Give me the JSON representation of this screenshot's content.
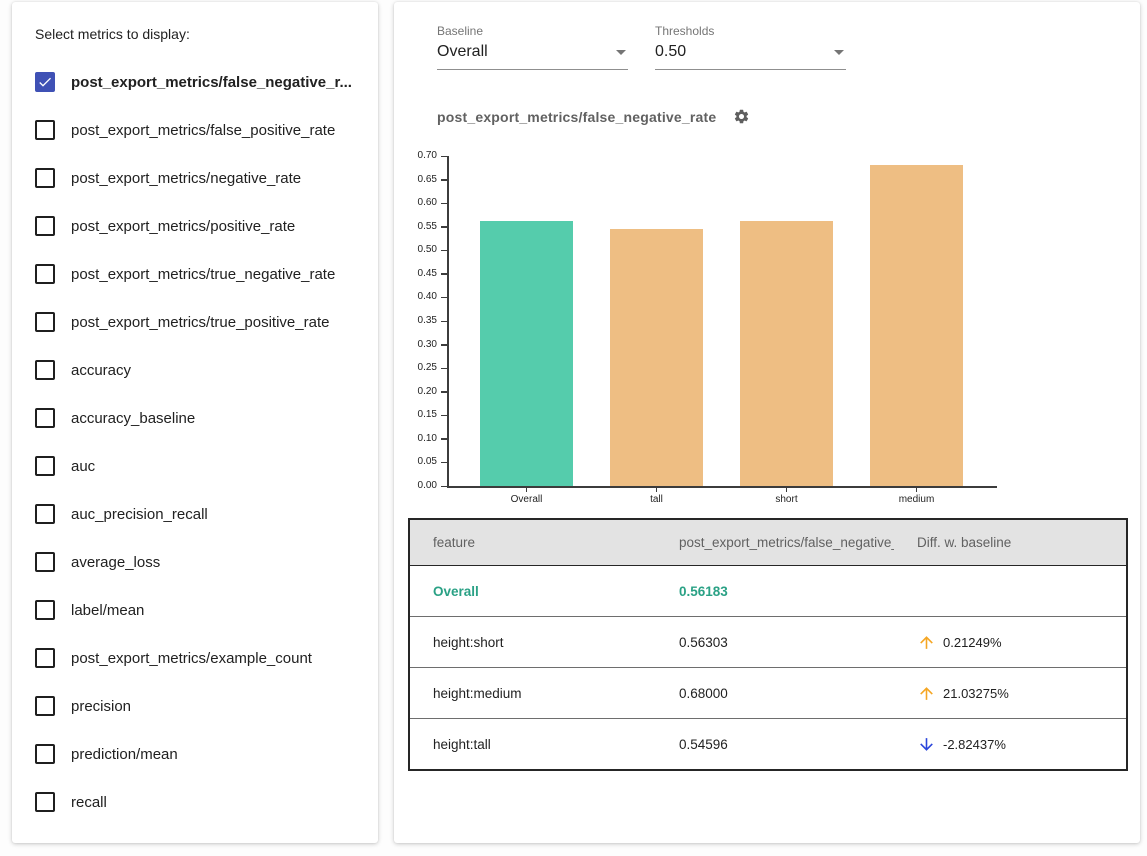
{
  "sidebar": {
    "title": "Select metrics to display:",
    "items": [
      {
        "label": "post_export_metrics/false_negative_r...",
        "checked": true
      },
      {
        "label": "post_export_metrics/false_positive_rate",
        "checked": false
      },
      {
        "label": "post_export_metrics/negative_rate",
        "checked": false
      },
      {
        "label": "post_export_metrics/positive_rate",
        "checked": false
      },
      {
        "label": "post_export_metrics/true_negative_rate",
        "checked": false
      },
      {
        "label": "post_export_metrics/true_positive_rate",
        "checked": false
      },
      {
        "label": "accuracy",
        "checked": false
      },
      {
        "label": "accuracy_baseline",
        "checked": false
      },
      {
        "label": "auc",
        "checked": false
      },
      {
        "label": "auc_precision_recall",
        "checked": false
      },
      {
        "label": "average_loss",
        "checked": false
      },
      {
        "label": "label/mean",
        "checked": false
      },
      {
        "label": "post_export_metrics/example_count",
        "checked": false
      },
      {
        "label": "precision",
        "checked": false
      },
      {
        "label": "prediction/mean",
        "checked": false
      },
      {
        "label": "recall",
        "checked": false
      }
    ]
  },
  "controls": {
    "baseline": {
      "label": "Baseline",
      "value": "Overall"
    },
    "thresholds": {
      "label": "Thresholds",
      "value": "0.50"
    }
  },
  "chart_header": {
    "title": "post_export_metrics/false_negative_rate"
  },
  "chart_data": {
    "type": "bar",
    "title": "post_export_metrics/false_negative_rate",
    "categories": [
      "Overall",
      "tall",
      "short",
      "medium"
    ],
    "values": [
      0.56183,
      0.54596,
      0.56303,
      0.68
    ],
    "bar_colors": [
      "#55CCAC",
      "#EEBE83",
      "#EEBE83",
      "#EEBE83"
    ],
    "ylim": [
      0,
      0.7
    ],
    "ytick_step": 0.05,
    "xlabel": "",
    "ylabel": "",
    "grid": false,
    "legend": "none"
  },
  "table": {
    "headers": [
      "feature",
      "post_export_metrics/false_negative_rat...",
      "Diff. w. baseline"
    ],
    "rows": [
      {
        "feature": "Overall",
        "value": "0.56183",
        "diff": "",
        "direction": "none",
        "is_baseline": true
      },
      {
        "feature": "height:short",
        "value": "0.56303",
        "diff": "0.21249%",
        "direction": "up",
        "is_baseline": false
      },
      {
        "feature": "height:medium",
        "value": "0.68000",
        "diff": "21.03275%",
        "direction": "up",
        "is_baseline": false
      },
      {
        "feature": "height:tall",
        "value": "0.54596",
        "diff": "-2.82437%",
        "direction": "down",
        "is_baseline": false
      }
    ]
  },
  "colors": {
    "baseline_bar": "#55CCAC",
    "slice_bar": "#EEBE83",
    "baseline_text": "#2AA185",
    "checkbox_checked": "#3F51B5",
    "up_arrow": "#F5A623",
    "down_arrow": "#2B46DB",
    "axis": "#3c3c3c"
  }
}
